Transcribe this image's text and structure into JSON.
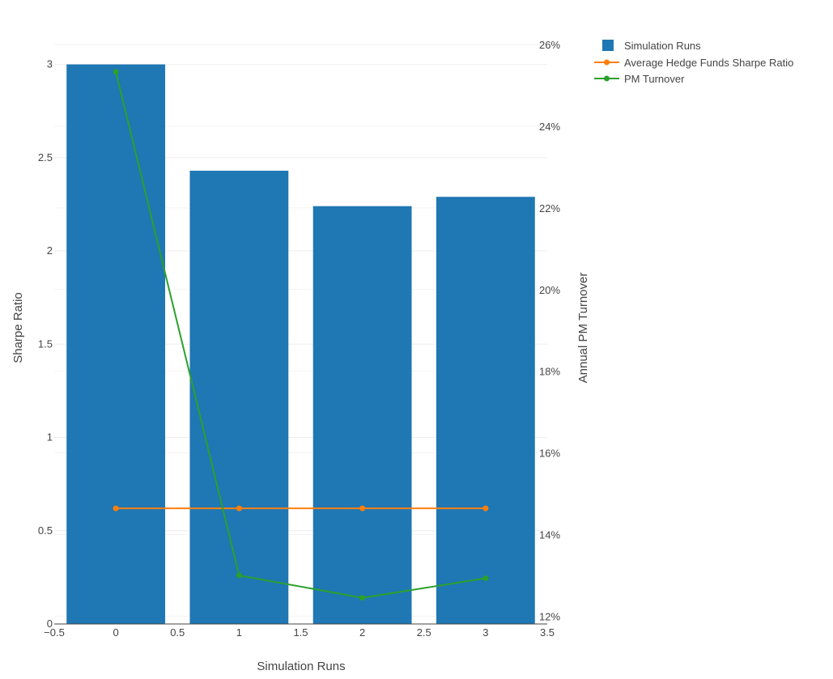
{
  "chart_data": {
    "type": "bar",
    "title": "",
    "xlabel": "Simulation Runs",
    "ylabel": "Sharpe Ratio",
    "y2label": "Annual PM Turnover",
    "x": [
      0,
      1,
      2,
      3
    ],
    "xlim": [
      -0.5,
      3.5
    ],
    "ylim": [
      0,
      3.15
    ],
    "y2lim": [
      0.1181,
      0.262
    ],
    "xticks": [
      "−0.5",
      "0",
      "0.5",
      "1",
      "1.5",
      "2",
      "2.5",
      "3",
      "3.5"
    ],
    "yticks": [
      "0",
      "0.5",
      "1",
      "1.5",
      "2",
      "2.5",
      "3"
    ],
    "y2ticks": [
      "12%",
      "14%",
      "16%",
      "18%",
      "20%",
      "22%",
      "24%",
      "26%"
    ],
    "grid": true,
    "legend_position": "top-right",
    "series": [
      {
        "name": "Simulation Runs",
        "kind": "bar",
        "axis": "y",
        "color": "#1f77b4",
        "values": [
          3.0,
          2.43,
          2.24,
          2.29
        ]
      },
      {
        "name": "Average Hedge Funds Sharpe Ratio",
        "kind": "line",
        "axis": "y",
        "color": "#ff7f0e",
        "values": [
          0.62,
          0.62,
          0.62,
          0.62
        ]
      },
      {
        "name": "PM Turnover",
        "kind": "line",
        "axis": "y2",
        "color": "#2ca02c",
        "values": [
          0.2533,
          0.13,
          0.1245,
          0.1293
        ]
      }
    ]
  }
}
